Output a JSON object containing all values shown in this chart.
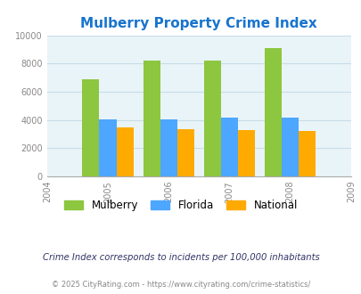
{
  "title": "Mulberry Property Crime Index",
  "title_color": "#1874cd",
  "years": [
    2005,
    2006,
    2007,
    2008
  ],
  "x_ticks": [
    2004,
    2005,
    2006,
    2007,
    2008,
    2009
  ],
  "mulberry": [
    6900,
    8200,
    8200,
    9100
  ],
  "florida": [
    4050,
    4050,
    4150,
    4150
  ],
  "national": [
    3450,
    3350,
    3300,
    3250
  ],
  "bar_colors": {
    "mulberry": "#8dc63f",
    "florida": "#4da6ff",
    "national": "#ffaa00"
  },
  "ylim": [
    0,
    10000
  ],
  "yticks": [
    0,
    2000,
    4000,
    6000,
    8000,
    10000
  ],
  "bg_color": "#e8f4f8",
  "fig_bg_color": "#ffffff",
  "grid_color": "#c8dde8",
  "bar_width": 0.28,
  "legend_labels": [
    "Mulberry",
    "Florida",
    "National"
  ],
  "footnote1": "Crime Index corresponds to incidents per 100,000 inhabitants",
  "footnote2": "© 2025 CityRating.com - https://www.cityrating.com/crime-statistics/",
  "footnote1_color": "#333366",
  "footnote2_color": "#888888"
}
